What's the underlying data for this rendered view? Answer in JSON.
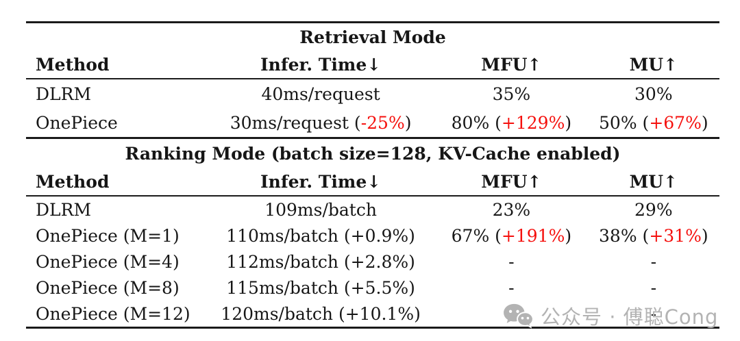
{
  "colors": {
    "text": "#161616",
    "accent_red": "#f5100d",
    "rule": "#1a1a1a",
    "watermark_gray": "#b3b3b3"
  },
  "table": {
    "sections": [
      {
        "title": "Retrieval Mode",
        "columns": [
          "Method",
          "Infer. Time↓",
          "MFU↑",
          "MU↑"
        ],
        "rows": [
          {
            "cells": [
              [
                {
                  "t": "DLRM"
                }
              ],
              [
                {
                  "t": "40ms/request"
                }
              ],
              [
                {
                  "t": "35%"
                }
              ],
              [
                {
                  "t": "30%"
                }
              ]
            ]
          },
          {
            "cells": [
              [
                {
                  "t": "OnePiece"
                }
              ],
              [
                {
                  "t": "30ms/request ("
                },
                {
                  "t": "-25%",
                  "red": true
                },
                {
                  "t": ")"
                }
              ],
              [
                {
                  "t": "80% ("
                },
                {
                  "t": "+129%",
                  "red": true
                },
                {
                  "t": ")"
                }
              ],
              [
                {
                  "t": "50% ("
                },
                {
                  "t": "+67%",
                  "red": true
                },
                {
                  "t": ")"
                }
              ]
            ]
          }
        ]
      },
      {
        "title": "Ranking Mode (batch size=128, KV-Cache enabled)",
        "columns": [
          "Method",
          "Infer. Time↓",
          "MFU↑",
          "MU↑"
        ],
        "rows": [
          {
            "cells": [
              [
                {
                  "t": "DLRM"
                }
              ],
              [
                {
                  "t": "109ms/batch"
                }
              ],
              [
                {
                  "t": "23%"
                }
              ],
              [
                {
                  "t": "29%"
                }
              ]
            ]
          },
          {
            "cells": [
              [
                {
                  "t": "OnePiece (M=1)"
                }
              ],
              [
                {
                  "t": "110ms/batch (+0.9%)"
                }
              ],
              [
                {
                  "t": "67% ("
                },
                {
                  "t": "+191%",
                  "red": true
                },
                {
                  "t": ")"
                }
              ],
              [
                {
                  "t": "38% ("
                },
                {
                  "t": "+31%",
                  "red": true
                },
                {
                  "t": ")"
                }
              ]
            ]
          },
          {
            "cells": [
              [
                {
                  "t": "OnePiece (M=4)"
                }
              ],
              [
                {
                  "t": "112ms/batch (+2.8%)"
                }
              ],
              [
                {
                  "t": "-"
                }
              ],
              [
                {
                  "t": "-"
                }
              ]
            ]
          },
          {
            "cells": [
              [
                {
                  "t": "OnePiece (M=8)"
                }
              ],
              [
                {
                  "t": "115ms/batch (+5.5%)"
                }
              ],
              [
                {
                  "t": "-"
                }
              ],
              [
                {
                  "t": "-"
                }
              ]
            ]
          },
          {
            "cells": [
              [
                {
                  "t": "OnePiece (M=12)"
                }
              ],
              [
                {
                  "t": "120ms/batch (+10.1%)"
                }
              ],
              [
                {
                  "t": "-"
                }
              ],
              [
                {
                  "t": "-"
                }
              ]
            ]
          }
        ]
      }
    ]
  },
  "watermark": {
    "icon": "wechat-icon",
    "text": "公众号 · 傅聪Cong"
  }
}
